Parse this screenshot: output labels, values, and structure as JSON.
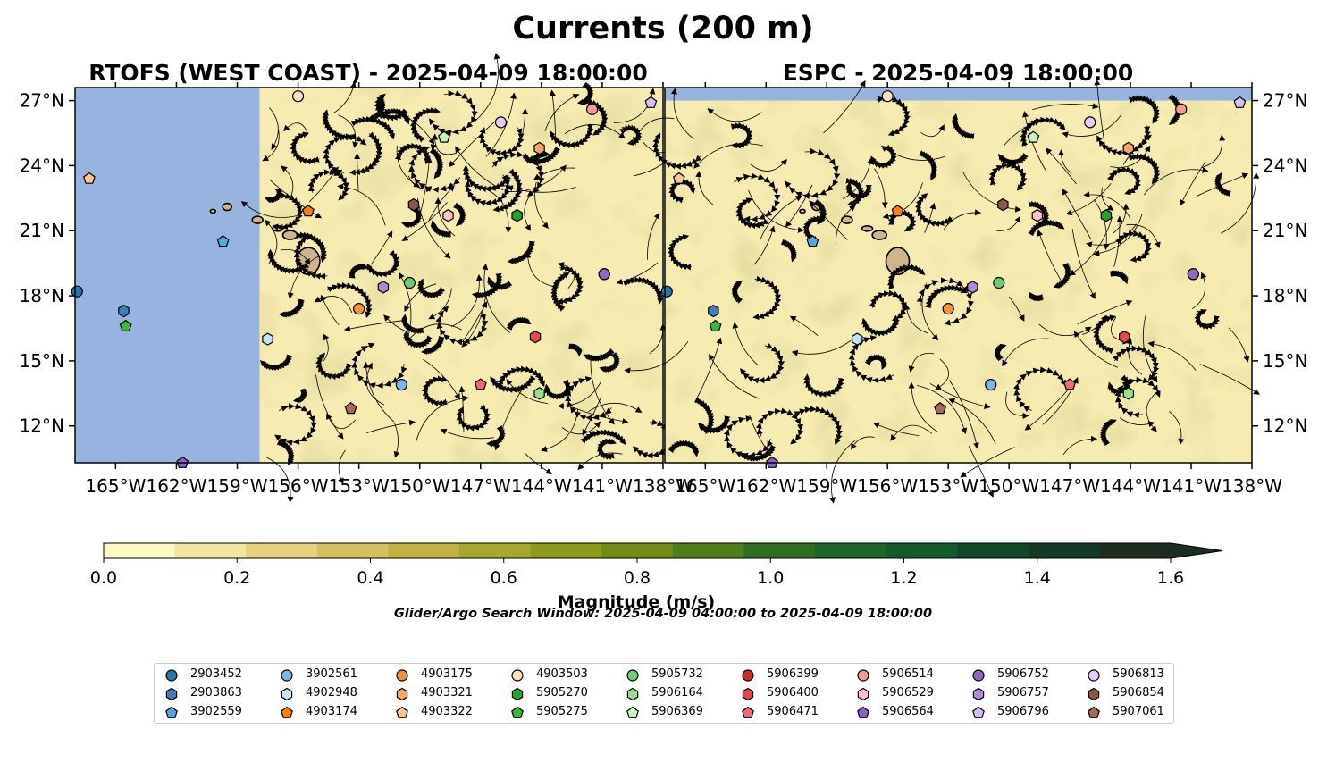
{
  "figure_title": "Currents (200 m)",
  "search_window": "Glider/Argo Search Window: 2025-04-09 04:00:00 to 2025-04-09 18:00:00",
  "colorbar": {
    "label": "Magnitude (m/s)",
    "ticks": [
      "0.0",
      "0.2",
      "0.4",
      "0.6",
      "0.8",
      "1.0",
      "1.2",
      "1.4",
      "1.6"
    ],
    "range": [
      0,
      1.6
    ],
    "extend": "max",
    "colors": [
      "#fdf7c4",
      "#f3e6a0",
      "#e6d27c",
      "#d6c05e",
      "#c3b243",
      "#a9a72b",
      "#8d9a1a",
      "#6f8c12",
      "#4f7d1a",
      "#2f6e22",
      "#1f6428",
      "#155a2b",
      "#124829",
      "#153a24",
      "#1c2e1d"
    ]
  },
  "colors": {
    "ocean": "#97b4e0",
    "field_base": "#f6ebb1",
    "land": "#d1b48c",
    "streamline": "#000000"
  },
  "chart_data": [
    {
      "type": "map",
      "title": "RTOFS (WEST COAST) - 2025-04-09 18:00:00",
      "xlim": [
        -167,
        -138
      ],
      "ylim": [
        10.3,
        27.6
      ],
      "x_ticks": [
        "165°W",
        "162°W",
        "159°W",
        "156°W",
        "153°W",
        "150°W",
        "147°W",
        "144°W",
        "141°W",
        "138°W"
      ],
      "y_ticks": [
        "12°N",
        "15°N",
        "18°N",
        "21°N",
        "24°N",
        "27°N"
      ],
      "y_axis_side": "left",
      "model_domain_west_lon": -157.9,
      "grid": false
    },
    {
      "type": "map",
      "title": "ESPC - 2025-04-09 18:00:00",
      "xlim": [
        -167,
        -138
      ],
      "ylim": [
        10.3,
        27.6
      ],
      "x_ticks": [
        "165°W",
        "162°W",
        "159°W",
        "156°W",
        "153°W",
        "150°W",
        "147°W",
        "144°W",
        "141°W",
        "138°W"
      ],
      "y_ticks": [
        "12°N",
        "15°N",
        "18°N",
        "21°N",
        "24°N",
        "27°N"
      ],
      "y_axis_side": "right",
      "model_domain_north_lat": 27.0,
      "grid": false
    }
  ],
  "floats": [
    {
      "id": "2903452",
      "marker": "circle",
      "color": "#1f77b4",
      "lon": -166.9,
      "lat": 18.2
    },
    {
      "id": "2903863",
      "marker": "hexagon",
      "color": "#3d7fb8",
      "lon": -164.6,
      "lat": 17.3
    },
    {
      "id": "3902559",
      "marker": "pentagon",
      "color": "#5aa7e0",
      "lon": -159.7,
      "lat": 20.5
    },
    {
      "id": "3902561",
      "marker": "circle",
      "color": "#7fb6e8",
      "lon": -150.9,
      "lat": 13.9
    },
    {
      "id": "4902948",
      "marker": "hexagon",
      "color": "#c6e2f7",
      "lon": -157.5,
      "lat": 16.0
    },
    {
      "id": "4903174",
      "marker": "pentagon",
      "color": "#ff7f0e",
      "lon": -155.5,
      "lat": 21.9
    },
    {
      "id": "4903175",
      "marker": "circle",
      "color": "#f0933a",
      "lon": -153.0,
      "lat": 17.4
    },
    {
      "id": "4903321",
      "marker": "hexagon",
      "color": "#f5a968",
      "lon": -144.1,
      "lat": 24.8
    },
    {
      "id": "4903322",
      "marker": "pentagon",
      "color": "#fdc590",
      "lon": -166.3,
      "lat": 23.4
    },
    {
      "id": "4903503",
      "marker": "circle",
      "color": "#fde0c2",
      "lon": -156.0,
      "lat": 27.2
    },
    {
      "id": "5905270",
      "marker": "hexagon",
      "color": "#2ca02c",
      "lon": -145.2,
      "lat": 21.7
    },
    {
      "id": "5905275",
      "marker": "pentagon",
      "color": "#3db83d",
      "lon": -164.5,
      "lat": 16.6
    },
    {
      "id": "5905732",
      "marker": "circle",
      "color": "#6ecb6e",
      "lon": -150.5,
      "lat": 18.6
    },
    {
      "id": "5906164",
      "marker": "hexagon",
      "color": "#98df8a",
      "lon": -144.1,
      "lat": 13.5
    },
    {
      "id": "5906369",
      "marker": "pentagon",
      "color": "#c7f2c0",
      "lon": -148.8,
      "lat": 25.3
    },
    {
      "id": "5906399",
      "marker": "circle",
      "color": "#d62728",
      "lon": -140.9,
      "lat": 19.0
    },
    {
      "id": "5906400",
      "marker": "hexagon",
      "color": "#e04a4a",
      "lon": -144.3,
      "lat": 16.1
    },
    {
      "id": "5906471",
      "marker": "pentagon",
      "color": "#ee6b73",
      "lon": -147.0,
      "lat": 13.9
    },
    {
      "id": "5906514",
      "marker": "circle",
      "color": "#f59a9a",
      "lon": -141.5,
      "lat": 26.6
    },
    {
      "id": "5906529",
      "marker": "hexagon",
      "color": "#fbc3c8",
      "lon": -148.6,
      "lat": 21.7
    },
    {
      "id": "5906564",
      "marker": "pentagon",
      "color": "#8d5fc9",
      "lon": -161.7,
      "lat": 10.3
    },
    {
      "id": "5906752",
      "marker": "circle",
      "color": "#9467bd",
      "lon": -140.9,
      "lat": 19.0
    },
    {
      "id": "5906757",
      "marker": "hexagon",
      "color": "#b08ad8",
      "lon": -151.8,
      "lat": 18.4
    },
    {
      "id": "5906796",
      "marker": "pentagon",
      "color": "#d4bff0",
      "lon": -138.6,
      "lat": 26.9
    },
    {
      "id": "5906813",
      "marker": "circle",
      "color": "#e3ccf7",
      "lon": -146.0,
      "lat": 26.0
    },
    {
      "id": "5906854",
      "marker": "hexagon",
      "color": "#8c564b",
      "lon": -150.3,
      "lat": 22.2
    },
    {
      "id": "5907061",
      "marker": "pentagon",
      "color": "#a66a5c",
      "lon": -153.4,
      "lat": 12.8
    }
  ],
  "legend": {
    "columns": [
      [
        "2903452",
        "2903863",
        "3902559"
      ],
      [
        "3902561",
        "4902948",
        "4903174"
      ],
      [
        "4903175",
        "4903321",
        "4903322"
      ],
      [
        "4903503",
        "5905270",
        "5905275"
      ],
      [
        "5905732",
        "5906164",
        "5906369"
      ],
      [
        "5906399",
        "5906400",
        "5906471"
      ],
      [
        "5906514",
        "5906529",
        "5906564"
      ],
      [
        "5906752",
        "5906757",
        "5906796"
      ],
      [
        "5906813",
        "5906854",
        "5907061"
      ]
    ]
  }
}
